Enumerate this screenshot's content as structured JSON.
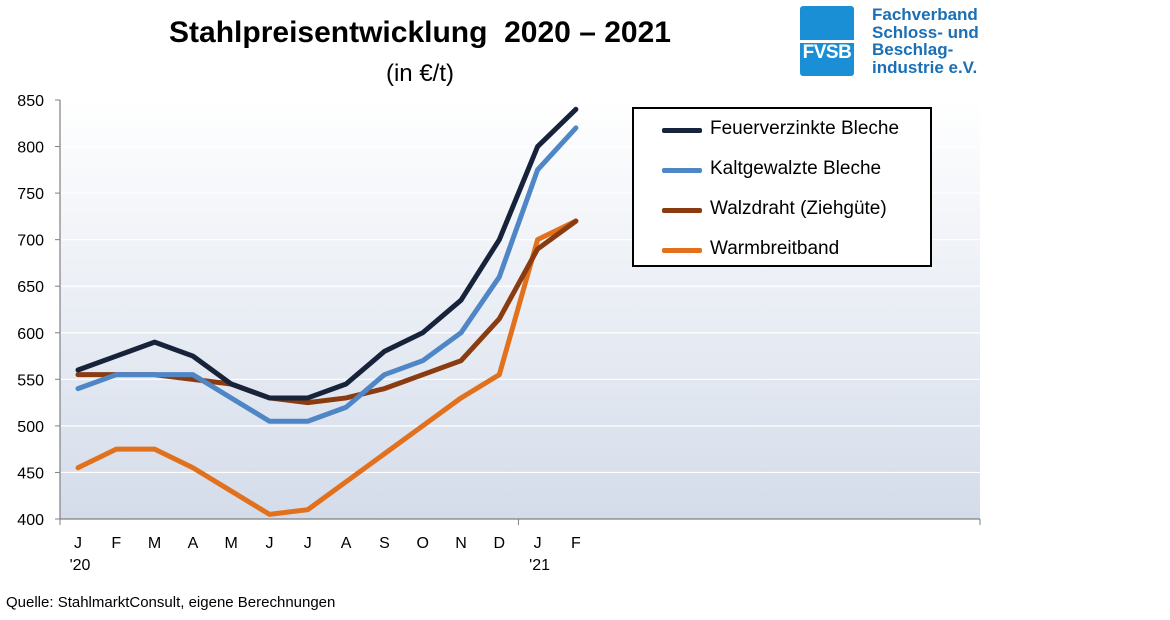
{
  "header": {
    "title": "Stahlpreisentwicklung  2020 – 2021",
    "subtitle": "(in €/t)"
  },
  "logo": {
    "abbr": "FVSB",
    "lines": [
      "Fachverband",
      "Schloss- und",
      "Beschlag-",
      "industrie e.V."
    ],
    "color": "#1a8fd6"
  },
  "source_note": "Quelle: StahlmarktConsult, eigene Berechnungen",
  "chart_data": {
    "type": "line",
    "title": "Stahlpreisentwicklung  2020 – 2021",
    "subtitle": "(in €/t)",
    "categories": [
      "J",
      "F",
      "M",
      "A",
      "M",
      "J",
      "J",
      "A",
      "S",
      "O",
      "N",
      "D",
      "J",
      "F"
    ],
    "year_labels": [
      {
        "index": 0,
        "label": "'20"
      },
      {
        "index": 12,
        "label": "'21"
      }
    ],
    "ylim": [
      400,
      850
    ],
    "yticks": [
      400,
      450,
      500,
      550,
      600,
      650,
      700,
      750,
      800,
      850
    ],
    "grid": true,
    "legend_position": "top-right",
    "series": [
      {
        "name": "Feuerverzinkte Bleche",
        "color": "#17233b",
        "values": [
          560,
          575,
          590,
          575,
          545,
          530,
          530,
          545,
          580,
          600,
          635,
          700,
          800,
          840
        ]
      },
      {
        "name": "Kaltgewalzte Bleche",
        "color": "#4f86c6",
        "values": [
          540,
          555,
          555,
          555,
          530,
          505,
          505,
          520,
          555,
          570,
          600,
          660,
          775,
          820
        ]
      },
      {
        "name": "Walzdraht (Ziehgüte)",
        "color": "#8a3c10",
        "values": [
          555,
          555,
          555,
          550,
          545,
          530,
          525,
          530,
          540,
          555,
          570,
          615,
          690,
          720
        ]
      },
      {
        "name": "Warmbreitband",
        "color": "#e2711d",
        "values": [
          455,
          475,
          475,
          455,
          430,
          405,
          410,
          440,
          470,
          500,
          530,
          555,
          700,
          720
        ]
      }
    ]
  }
}
